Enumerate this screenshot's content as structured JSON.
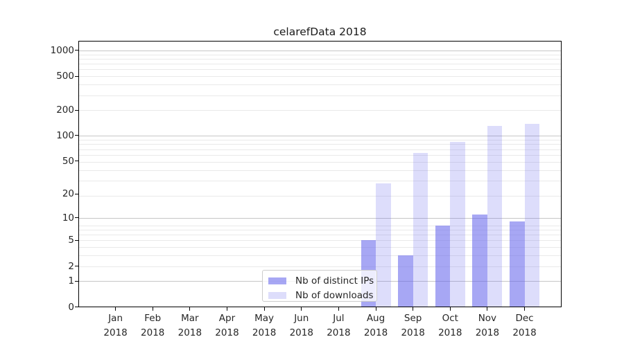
{
  "title": "celarefData 2018",
  "chart_data": {
    "type": "bar",
    "title": "celarefData 2018",
    "categories": [
      "Jan 2018",
      "Feb 2018",
      "Mar 2018",
      "Apr 2018",
      "May 2018",
      "Jun 2018",
      "Jul 2018",
      "Aug 2018",
      "Sep 2018",
      "Oct 2018",
      "Nov 2018",
      "Dec 2018"
    ],
    "series": [
      {
        "name": "Nb of distinct IPs",
        "color": "rgba(100,100,235,0.57)",
        "values": [
          0,
          0,
          0,
          0,
          0,
          0,
          0,
          5,
          3,
          8,
          11,
          9
        ]
      },
      {
        "name": "Nb of downloads",
        "color": "rgba(100,100,235,0.22)",
        "values": [
          0,
          0,
          0,
          0,
          0,
          0,
          0,
          27,
          62,
          85,
          131,
          138
        ]
      }
    ],
    "xlabel": "",
    "ylabel": "",
    "yscale": "log10(value+1)",
    "ytick_values": [
      0,
      1,
      2,
      5,
      10,
      20,
      50,
      100,
      200,
      500,
      1000
    ],
    "ytick_labels": [
      "0",
      "1",
      "2",
      "5",
      "10",
      "20",
      "50",
      "100",
      "200",
      "500",
      "1000"
    ],
    "ytick_major_values": [
      1,
      10,
      100,
      1000
    ],
    "ytick_minor_values": [
      2,
      3,
      4,
      5,
      6,
      7,
      8,
      19,
      29,
      39,
      49,
      59,
      69,
      79,
      89,
      199,
      299,
      399,
      499,
      599,
      699,
      799,
      899
    ],
    "ylim": [
      0,
      1300
    ],
    "grid": "horizontal",
    "legend_position": "inside-lower-center",
    "colors": {
      "bar_distinct_ips": "#a9a9f1",
      "bar_downloads": "#dcdcf8",
      "grid_major": "#c6c6c6",
      "grid_minor": "#e9e9e9",
      "spine": "#000000",
      "text": "#262626"
    }
  }
}
